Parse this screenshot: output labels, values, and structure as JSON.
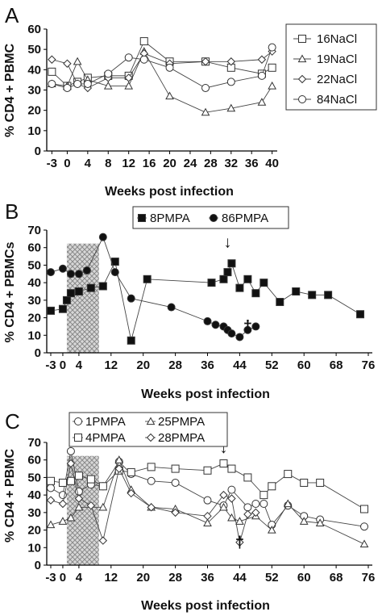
{
  "chart_data": [
    {
      "panel": "A",
      "type": "line",
      "xlabel": "Weeks post infection",
      "ylabel": "% CD4 + PBMC",
      "xlim": [
        -4,
        41
      ],
      "ylim": [
        0,
        60
      ],
      "xticks": [
        -3,
        0,
        4,
        8,
        12,
        16,
        20,
        24,
        28,
        32,
        36,
        40
      ],
      "yticks": [
        0,
        10,
        20,
        30,
        40,
        50,
        60
      ],
      "legend_position": "right",
      "series": [
        {
          "name": "16NaCl",
          "marker": "square-open",
          "x": [
            -3,
            0,
            2,
            4,
            8,
            12,
            15,
            20,
            27,
            32,
            38,
            40
          ],
          "y": [
            39,
            32,
            34,
            36,
            37,
            37,
            54,
            44,
            44,
            41,
            38,
            41
          ]
        },
        {
          "name": "19NaCl",
          "marker": "triangle-open",
          "x": [
            -3,
            0,
            2,
            4,
            8,
            12,
            15,
            20,
            27,
            32,
            38,
            40
          ],
          "y": [
            33,
            32,
            44,
            35,
            32,
            32,
            49,
            27,
            19,
            21,
            24,
            32
          ]
        },
        {
          "name": "22NaCl",
          "marker": "diamond-open",
          "x": [
            -3,
            0,
            2,
            4,
            8,
            12,
            15,
            20,
            27,
            32,
            38,
            40
          ],
          "y": [
            45,
            43,
            33,
            31,
            36,
            36,
            48,
            43,
            44,
            44,
            45,
            49
          ]
        },
        {
          "name": "84NaCl",
          "marker": "circle-open",
          "x": [
            -3,
            0,
            2,
            4,
            8,
            12,
            15,
            20,
            27,
            32,
            38,
            40
          ],
          "y": [
            33,
            31,
            33,
            33,
            38,
            46,
            45,
            41,
            31,
            34,
            37,
            51
          ]
        }
      ]
    },
    {
      "panel": "B",
      "type": "line",
      "xlabel": "Weeks post infection",
      "ylabel": "% CD4 + PBMCs",
      "xlim": [
        -4,
        77
      ],
      "ylim": [
        0,
        70
      ],
      "xticks": [
        -3,
        0,
        4,
        12,
        20,
        28,
        36,
        44,
        52,
        60,
        68,
        76
      ],
      "yticks": [
        0,
        10,
        20,
        30,
        40,
        50,
        60,
        70
      ],
      "legend_position": "top",
      "treatment_period": [
        1,
        9
      ],
      "annotations": [
        {
          "text": "↓",
          "x": 41,
          "y": 60
        },
        {
          "text": "†",
          "x": 46,
          "y": 12
        }
      ],
      "series": [
        {
          "name": "8PMPA",
          "marker": "square-filled",
          "x": [
            -3,
            0,
            1,
            2,
            4,
            7,
            10,
            13,
            17,
            21,
            37,
            40,
            41,
            42,
            44,
            46,
            48,
            50,
            54,
            58,
            62,
            66,
            74
          ],
          "y": [
            24,
            25,
            30,
            34,
            35,
            37,
            38,
            52,
            7,
            42,
            40,
            42,
            46,
            51,
            37,
            42,
            34,
            40,
            29,
            35,
            33,
            33,
            22
          ]
        },
        {
          "name": "86PMPA",
          "marker": "circle-filled",
          "x": [
            -3,
            0,
            2,
            4,
            6,
            10,
            13,
            17,
            27,
            36,
            38,
            40,
            41,
            42,
            44,
            46,
            48
          ],
          "y": [
            46,
            48,
            45,
            45,
            47,
            66,
            46,
            31,
            26,
            18,
            16,
            15,
            13,
            11,
            9,
            13,
            15
          ]
        }
      ]
    },
    {
      "panel": "C",
      "type": "line",
      "xlabel": "Weeks post infection",
      "ylabel": "% CD4 + PBMC",
      "xlim": [
        -4,
        77
      ],
      "ylim": [
        0,
        70
      ],
      "xticks": [
        -3,
        0,
        4,
        12,
        20,
        28,
        36,
        44,
        52,
        60,
        68,
        76
      ],
      "yticks": [
        0,
        10,
        20,
        30,
        40,
        50,
        60,
        70
      ],
      "legend_position": "top",
      "treatment_period": [
        1,
        9
      ],
      "annotations": [
        {
          "text": "↓",
          "x": 40,
          "y": 64
        },
        {
          "text": "†",
          "x": 44,
          "y": 10
        }
      ],
      "series": [
        {
          "name": "1PMPA",
          "marker": "circle-open",
          "x": [
            -3,
            0,
            2,
            4,
            7,
            10,
            14,
            17,
            22,
            28,
            36,
            40,
            42,
            46,
            48,
            50,
            52,
            56,
            60,
            64,
            75
          ],
          "y": [
            44,
            40,
            65,
            42,
            46,
            45,
            59,
            52,
            48,
            47,
            37,
            34,
            43,
            33,
            35,
            35,
            23,
            34,
            28,
            26,
            22
          ]
        },
        {
          "name": "4PMPA",
          "marker": "square-open",
          "x": [
            -3,
            0,
            2,
            4,
            7,
            10,
            14,
            17,
            22,
            28,
            36,
            40,
            42,
            46,
            50,
            52,
            56,
            60,
            64,
            75
          ],
          "y": [
            48,
            47,
            48,
            51,
            49,
            45,
            54,
            53,
            56,
            55,
            54,
            58,
            55,
            50,
            40,
            45,
            52,
            47,
            47,
            32
          ]
        },
        {
          "name": "25PMPA",
          "marker": "triangle-open",
          "x": [
            -3,
            0,
            2,
            4,
            10,
            14,
            17,
            22,
            28,
            36,
            40,
            42,
            44,
            48,
            52,
            56,
            60,
            64,
            75
          ],
          "y": [
            23,
            25,
            27,
            33,
            33,
            60,
            43,
            33,
            32,
            24,
            33,
            27,
            25,
            28,
            20,
            35,
            25,
            24,
            12
          ]
        },
        {
          "name": "28PMPA",
          "marker": "diamond-open",
          "x": [
            -3,
            0,
            2,
            4,
            7,
            10,
            14,
            17,
            22,
            28,
            36,
            40,
            42,
            44,
            46,
            48
          ],
          "y": [
            37,
            35,
            58,
            38,
            34,
            14,
            55,
            41,
            33,
            30,
            28,
            40,
            38,
            13,
            29,
            30
          ]
        }
      ]
    }
  ],
  "panels": {
    "a": {
      "letter": "A",
      "legend": [
        "16NaCl",
        "19NaCl",
        "22NaCl",
        "84NaCl"
      ]
    },
    "b": {
      "letter": "B",
      "legend": [
        "8PMPA",
        "86PMPA"
      ]
    },
    "c": {
      "letter": "C",
      "legend": [
        "1PMPA",
        "25PMPA",
        "4PMPA",
        "28PMPA"
      ]
    }
  }
}
